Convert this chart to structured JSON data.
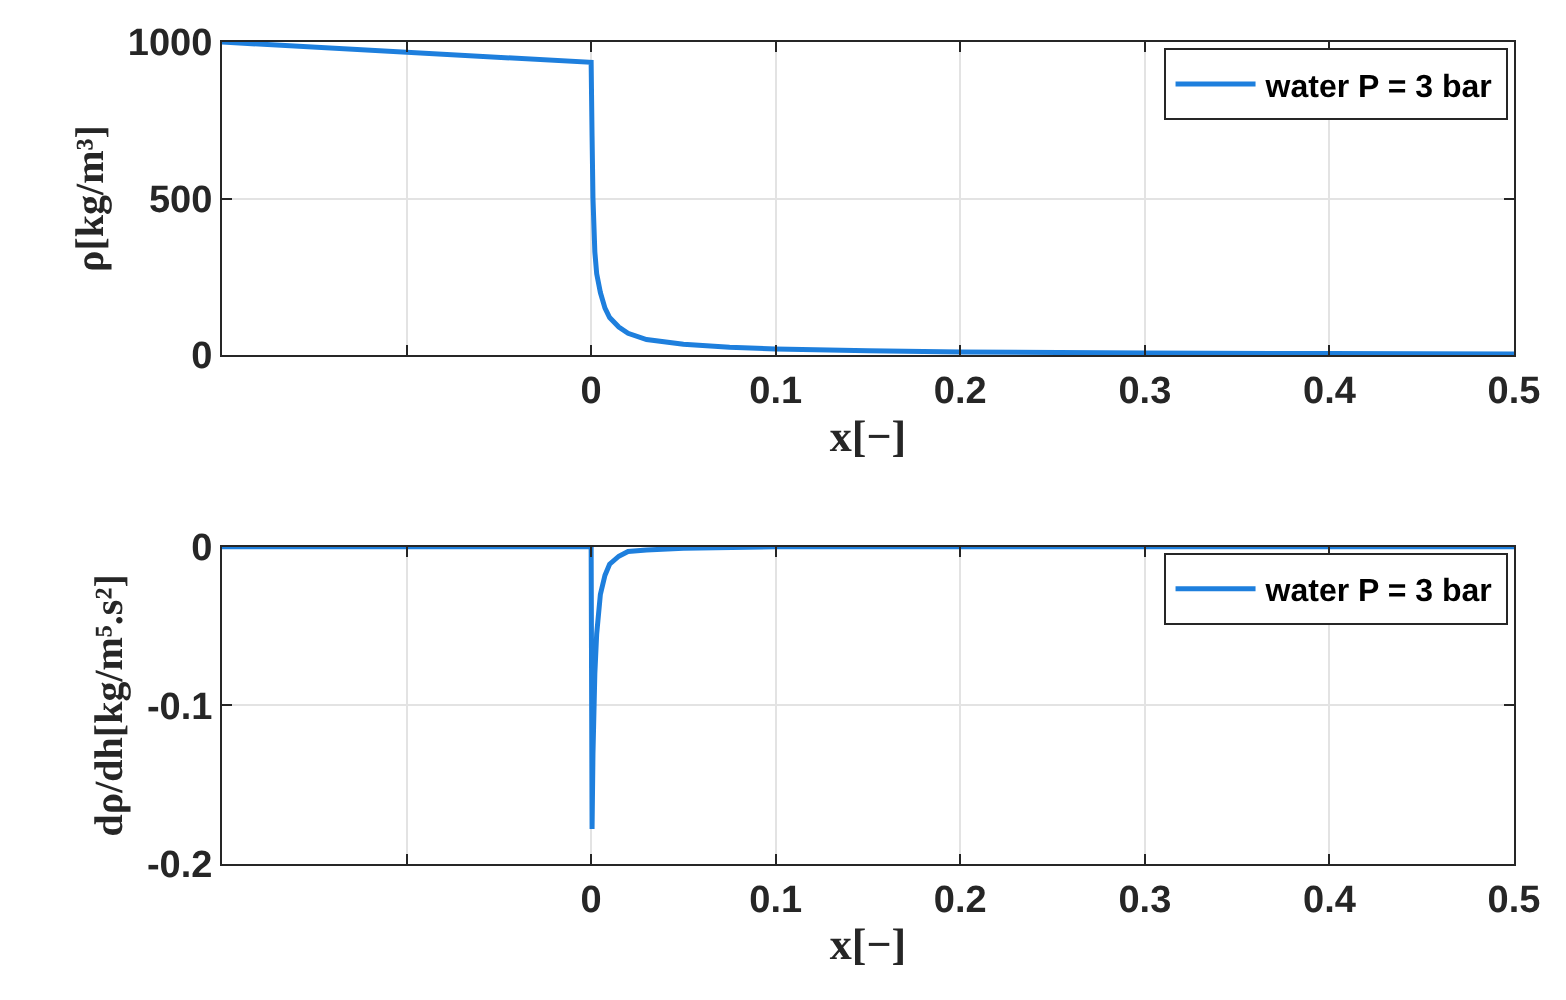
{
  "chart_data": [
    {
      "type": "line",
      "xlabel": "x[−]",
      "ylabel": "ρ[kg/m³]",
      "xlim": [
        -0.2,
        0.5
      ],
      "ylim": [
        0,
        1000
      ],
      "xticks": [
        {
          "value": -0.1,
          "label": null
        },
        0,
        0.1,
        0.2,
        0.3,
        0.4,
        0.5
      ],
      "yticks": [
        0,
        500,
        1000
      ],
      "grid": true,
      "legend": "top right",
      "line_style": "solid",
      "series": [
        {
          "name": "water P = 3 bar",
          "color": "#1e7fdd",
          "x": [
            -0.2,
            0,
            0.0005,
            0.001,
            0.002,
            0.003,
            0.005,
            0.0075,
            0.01,
            0.015,
            0.02,
            0.03,
            0.05,
            0.075,
            0.1,
            0.15,
            0.2,
            0.3,
            0.4,
            0.5
          ],
          "values": [
            1000,
            935,
            700,
            500,
            330,
            260,
            200,
            150,
            120,
            90,
            70,
            50,
            35,
            25,
            20,
            14,
            10,
            7,
            5,
            4
          ]
        }
      ]
    },
    {
      "type": "line",
      "xlabel": "x[−]",
      "ylabel": "dρ/dh[kg/m⁵.s²]",
      "xlim": [
        -0.2,
        0.5
      ],
      "ylim": [
        -0.2,
        0
      ],
      "xticks": [
        {
          "value": -0.1,
          "label": null
        },
        0,
        0.1,
        0.2,
        0.3,
        0.4,
        0.5
      ],
      "yticks": [
        -0.2,
        -0.1,
        0
      ],
      "grid": true,
      "legend": "top right",
      "line_style": "solid",
      "series": [
        {
          "name": "water P = 3 bar",
          "color": "#1e7fdd",
          "x": [
            -0.2,
            0,
            0.0005,
            0.001,
            0.002,
            0.003,
            0.005,
            0.0075,
            0.01,
            0.015,
            0.02,
            0.03,
            0.05,
            0.1,
            0.5
          ],
          "values": [
            0,
            0,
            -0.178,
            -0.13,
            -0.08,
            -0.055,
            -0.03,
            -0.018,
            -0.011,
            -0.006,
            -0.003,
            -0.002,
            -0.001,
            0,
            0
          ]
        }
      ]
    }
  ]
}
